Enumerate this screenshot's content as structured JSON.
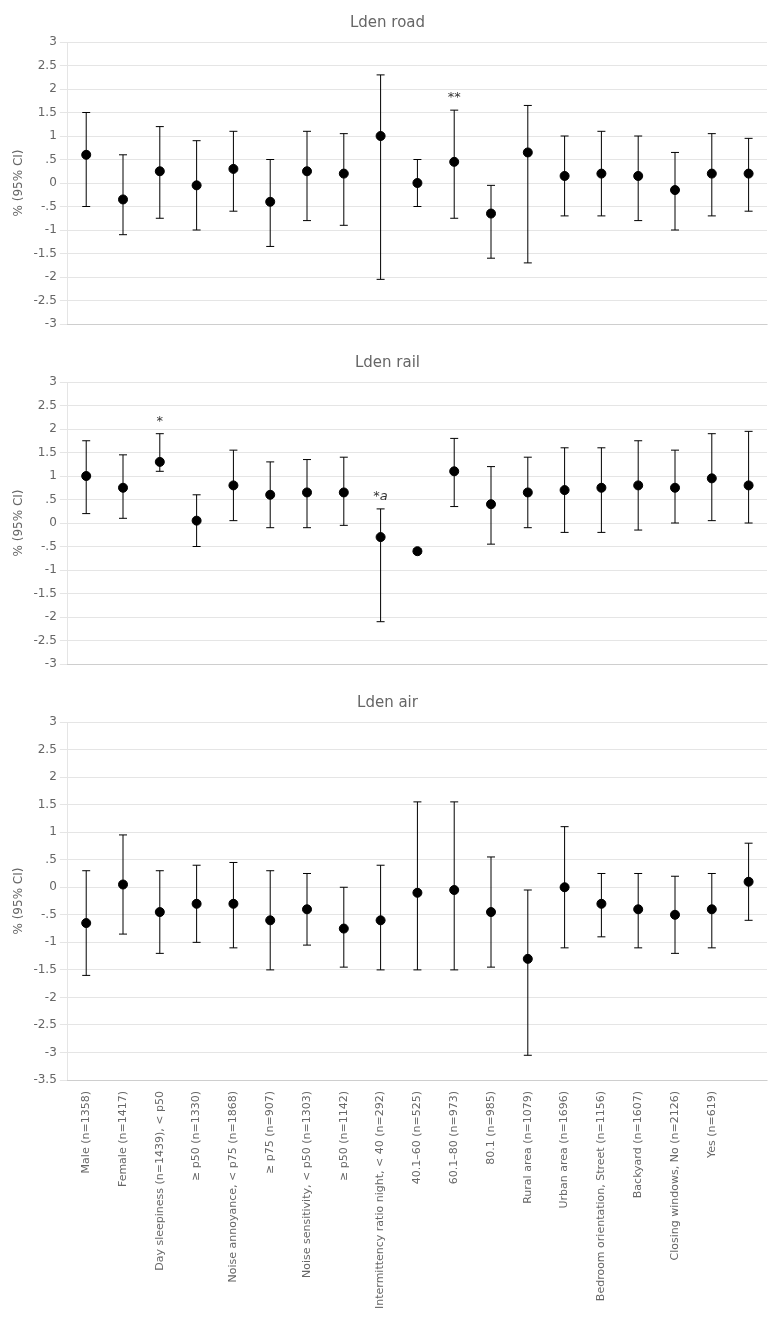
{
  "chart_data": [
    {
      "type": "scatter",
      "title": "Lden road",
      "ylabel": "% (95% CI)",
      "categories": [
        "Male (n=1358)",
        "Female (n=1417)",
        "Day sleepiness (n=1439), < p50",
        "≥ p50 (n=1330)",
        "Noise annoyance, < p75 (n=1868)",
        "≥ p75 (n=907)",
        "Noise sensitivity, < p50 (n=1303)",
        "≥ p50 (n=1142)",
        "Intermittency ratio night, < 40 (n=292)",
        "40.1–60 (n=525)",
        "60.1–80 (n=973)",
        "80.1 (n=985)",
        "Rural area (n=1079)",
        "Urban area (n=1696)",
        "Bedroom orientation, Street (n=1156)",
        "Backyard (n=1607)",
        "Closing windows, No (n=2126)",
        "Yes (n=619)",
        null
      ],
      "values": [
        0.6,
        -0.35,
        0.25,
        -0.05,
        0.3,
        -0.4,
        0.25,
        0.2,
        1.0,
        0.0,
        0.45,
        -0.65,
        0.65,
        0.15,
        0.2,
        0.15,
        -0.15,
        0.2,
        0.2
      ],
      "lo": [
        -0.5,
        -1.1,
        -0.75,
        -1.0,
        -0.6,
        -1.35,
        -0.8,
        -0.9,
        -2.05,
        -0.5,
        -0.75,
        -1.6,
        -1.7,
        -0.7,
        -0.7,
        -0.8,
        -1.0,
        -0.7,
        -0.6
      ],
      "hi": [
        1.5,
        0.6,
        1.2,
        0.9,
        1.1,
        0.5,
        1.1,
        1.05,
        2.3,
        0.5,
        1.55,
        -0.05,
        1.65,
        1.0,
        1.1,
        1.0,
        0.65,
        1.05,
        0.95
      ],
      "annotations": [
        {
          "text": "**",
          "x": "60.1–80 (n=973)"
        }
      ],
      "color": "#000000",
      "marker": "circle",
      "ylim": [
        -3.0,
        3.0
      ],
      "yticks": [
        -3,
        -2.5,
        -2,
        -1.5,
        -1,
        {
          "value": -0.5,
          "label": "-.5"
        },
        0,
        {
          "value": 0.5,
          "label": ".5"
        },
        1,
        1.5,
        2,
        2.5,
        3
      ],
      "grid": true,
      "tick_labels": "y"
    },
    {
      "type": "scatter",
      "title": "Lden rail",
      "ylabel": "% (95% CI)",
      "categories": [
        "Male (n=1358)",
        "Female (n=1417)",
        "Day sleepiness (n=1439), < p50",
        "≥ p50 (n=1330)",
        "Noise annoyance, < p75 (n=1868)",
        "≥ p75 (n=907)",
        "Noise sensitivity, < p50 (n=1303)",
        "≥ p50 (n=1142)",
        "Intermittency ratio night, < 40 (n=292)",
        "40.1–60 (n=525)",
        "60.1–80 (n=973)",
        "80.1 (n=985)",
        "Rural area (n=1079)",
        "Urban area (n=1696)",
        "Bedroom orientation, Street (n=1156)",
        "Backyard (n=1607)",
        "Closing windows, No (n=2126)",
        "Yes (n=619)",
        null
      ],
      "values": [
        1.0,
        0.75,
        1.3,
        0.05,
        0.8,
        0.6,
        0.65,
        0.65,
        -0.3,
        -0.6,
        1.1,
        0.4,
        0.65,
        0.7,
        0.75,
        0.8,
        0.75,
        0.95,
        0.8
      ],
      "lo": [
        0.2,
        0.1,
        1.1,
        -0.5,
        0.05,
        -0.1,
        -0.1,
        -0.05,
        -2.1,
        -0.65,
        0.35,
        -0.45,
        -0.1,
        -0.2,
        -0.2,
        -0.15,
        0.0,
        0.05,
        0.0
      ],
      "hi": [
        1.75,
        1.45,
        1.9,
        0.6,
        1.55,
        1.3,
        1.35,
        1.4,
        0.3,
        -0.55,
        1.8,
        1.2,
        1.4,
        1.6,
        1.6,
        1.75,
        1.55,
        1.9,
        1.95
      ],
      "annotations": [
        {
          "text": "*",
          "x": "Day sleepiness (n=1439), < p50"
        },
        {
          "text": "*a",
          "x": "Intermittency ratio night, < 40 (n=292)"
        }
      ],
      "color": "#000000",
      "marker": "circle",
      "ylim": [
        -3.0,
        3.0
      ],
      "yticks": [
        -3,
        -2.5,
        -2,
        -1.5,
        -1,
        {
          "value": -0.5,
          "label": "-.5"
        },
        0,
        {
          "value": 0.5,
          "label": ".5"
        },
        1,
        1.5,
        2,
        2.5,
        3
      ],
      "grid": true,
      "tick_labels": "y"
    },
    {
      "type": "scatter",
      "title": "Lden air",
      "ylabel": "% (95% CI)",
      "categories": [
        "Male (n=1358)",
        "Female (n=1417)",
        "Day sleepiness (n=1439), < p50",
        "≥ p50 (n=1330)",
        "Noise annoyance, < p75 (n=1868)",
        "≥ p75 (n=907)",
        "Noise sensitivity, < p50 (n=1303)",
        "≥ p50 (n=1142)",
        "Intermittency ratio night, < 40 (n=292)",
        "40.1–60 (n=525)",
        "60.1–80 (n=973)",
        "80.1 (n=985)",
        "Rural area (n=1079)",
        "Urban area (n=1696)",
        "Bedroom orientation, Street (n=1156)",
        "Backyard (n=1607)",
        "Closing windows, No (n=2126)",
        "Yes (n=619)",
        null
      ],
      "values": [
        -0.65,
        0.05,
        -0.45,
        -0.3,
        -0.3,
        -0.6,
        -0.4,
        -0.75,
        -0.6,
        -0.1,
        -0.05,
        -0.45,
        -1.3,
        0.0,
        -0.3,
        -0.4,
        -0.5,
        -0.4,
        0.1
      ],
      "lo": [
        -1.6,
        -0.85,
        -1.2,
        -1.0,
        -1.1,
        -1.5,
        -1.05,
        -1.45,
        -1.5,
        -1.5,
        -1.5,
        -1.45,
        -3.05,
        -1.1,
        -0.9,
        -1.1,
        -1.2,
        -1.1,
        -0.6
      ],
      "hi": [
        0.3,
        0.95,
        0.3,
        0.4,
        0.45,
        0.3,
        0.25,
        0.0,
        0.4,
        1.55,
        1.55,
        0.55,
        -0.05,
        1.1,
        0.25,
        0.25,
        0.2,
        0.25,
        0.8
      ],
      "color": "#000000",
      "marker": "circle",
      "ylim": [
        -3.5,
        3.0
      ],
      "yticks": [
        -3.5,
        -3,
        -2.5,
        -2,
        -1.5,
        -1,
        {
          "value": -0.5,
          "label": "-.5"
        },
        0,
        {
          "value": 0.5,
          "label": ".5"
        },
        1,
        1.5,
        2,
        2.5,
        3
      ],
      "grid": true
    }
  ]
}
